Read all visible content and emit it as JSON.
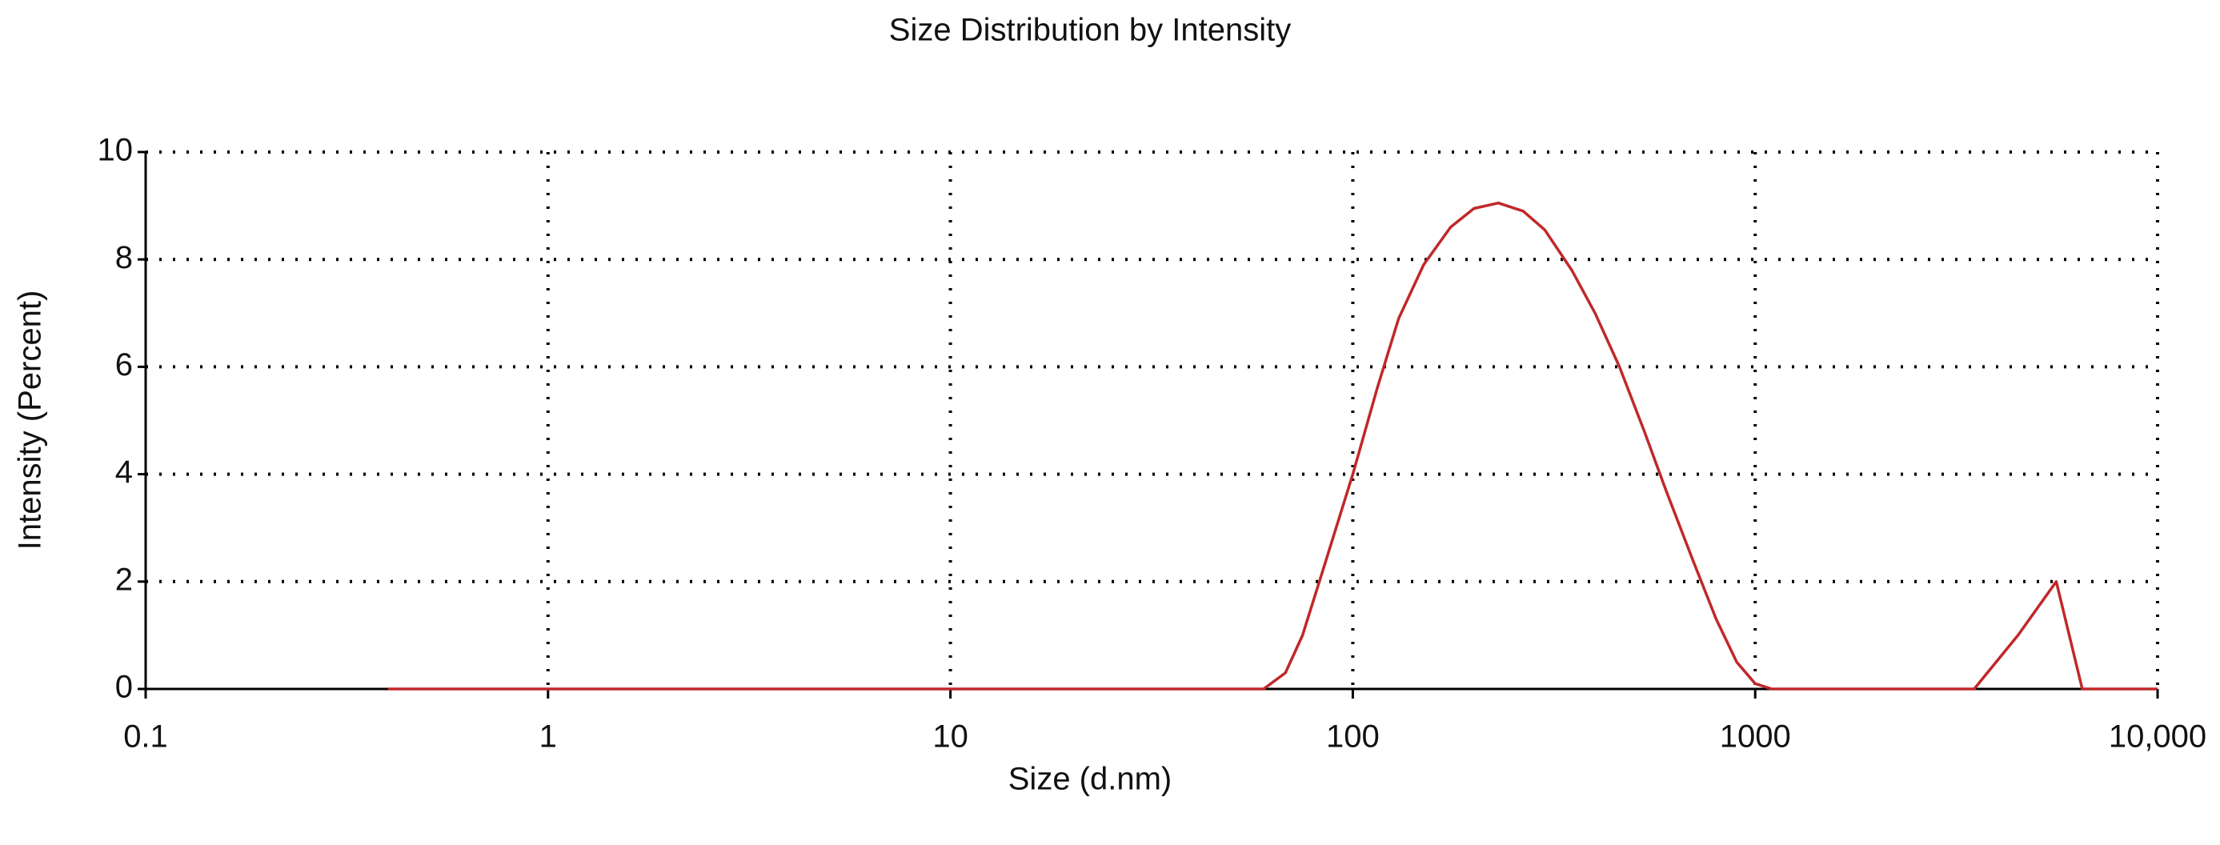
{
  "chart_data": {
    "type": "line",
    "title": "Size Distribution by Intensity",
    "x_label": "Size (d.nm)",
    "y_label": "Intensity (Percent)",
    "log_x": true,
    "grid": true,
    "xlim": [
      0.1,
      10000
    ],
    "xticks": [
      0.1,
      1,
      10,
      100,
      1000,
      {
        "value": 10000,
        "label": "10,000"
      }
    ],
    "ylim": [
      0,
      10
    ],
    "yticks": [
      0,
      2,
      4,
      6,
      8,
      10
    ],
    "series": [
      {
        "color": "#c0282a",
        "x": [
          0.4,
          1,
          10,
          60,
          68,
          75,
          85,
          100,
          115,
          130,
          150,
          175,
          200,
          230,
          265,
          300,
          350,
          400,
          460,
          530,
          600,
          700,
          800,
          900,
          1000,
          1100,
          3500,
          4500,
          5600,
          6500,
          10000
        ],
        "values": [
          0,
          0,
          0,
          0,
          0.3,
          1,
          2.3,
          4,
          5.6,
          6.9,
          7.9,
          8.6,
          8.95,
          9.05,
          8.9,
          8.55,
          7.8,
          7,
          6,
          4.8,
          3.7,
          2.4,
          1.3,
          0.5,
          0.1,
          0,
          0,
          1,
          2,
          0,
          0
        ]
      }
    ]
  }
}
